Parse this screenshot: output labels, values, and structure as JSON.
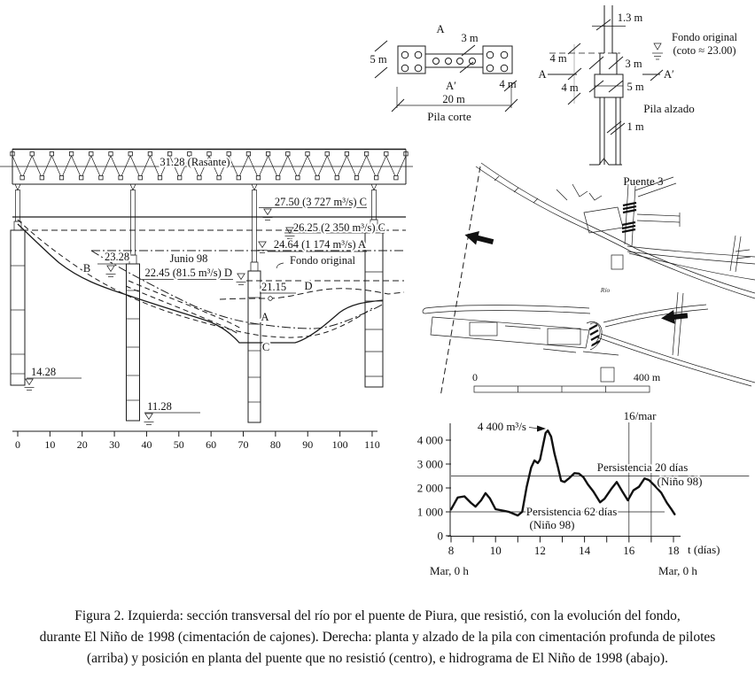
{
  "figure": {
    "caption_lines": [
      "Figura 2. Izquierda: sección transversal del río por el puente de Piura, que resistió, con la evolución del fondo,",
      "durante El Niño de 1998 (cimentación de cajones). Derecha: planta y alzado de la pila con cimentación profunda de pilotes",
      "(arriba) y posición en planta del puente que no resistió (centro), e hidrograma de El Niño de 1998 (abajo)."
    ]
  },
  "cross_section": {
    "rasante_label": "31.28 (Rasante)",
    "level_c_high": "27.50 (3 727 m³/s) C",
    "level_c_low": "26.25 (2 350 m³/s) C",
    "level_a": "24.64 (1 174 m³/s) A",
    "fondo_original": "Fondo original",
    "level_2328": "23.28",
    "junio_98": "Junio 98",
    "level_d": "22.45 (81.5 m³/s) D",
    "level_2115": "21.15",
    "curve_b": "B",
    "curve_d": "D",
    "curve_a": "A",
    "curve_c": "C",
    "elev_1428": "14.28",
    "elev_1128": "11.28",
    "axis_ticks": [
      "0",
      "10",
      "20",
      "30",
      "40",
      "50",
      "60",
      "70",
      "80",
      "90",
      "100",
      "110"
    ]
  },
  "pila_corte": {
    "title": "Pila corte",
    "section_a": "A",
    "section_a_prime": "A′",
    "dim_5m": "5 m",
    "dim_3m": "3 m",
    "dim_4m": "4 m",
    "dim_20m": "20 m"
  },
  "pila_alzado": {
    "title": "Pila alzado",
    "dim_13m": "1.3 m",
    "dim_4m_top": "4 m",
    "dim_3m": "3 m",
    "dim_4m_bottom": "4 m",
    "dim_5m": "5 m",
    "dim_1m": "1 m",
    "section_a": "A",
    "section_a_prime": "A′",
    "fondo_line1": "Fondo original",
    "fondo_line2": "(coto ≈ 23.00)"
  },
  "map": {
    "bridge_label": "Puente 3",
    "river_label": "Río",
    "scale_zero": "0",
    "scale_max": "400 m"
  },
  "chart_data": {
    "type": "line",
    "title": "",
    "xlabel": "t (días)",
    "ylabel": "",
    "x_range": [
      8,
      18.2
    ],
    "y_range": [
      0,
      4700
    ],
    "x_ticks": [
      8,
      10,
      12,
      14,
      16,
      18
    ],
    "x_minor_ticks": [
      9,
      11,
      13,
      15,
      17
    ],
    "x_tick_labels": [
      "8",
      "10",
      "12",
      "14",
      "16",
      "18"
    ],
    "y_ticks": [
      0,
      1000,
      2000,
      3000,
      4000
    ],
    "y_tick_labels": [
      "0",
      "1 000",
      "2 000",
      "3 000",
      "4 000"
    ],
    "x_start_label": "Mar, 0 h",
    "x_end_label": "Mar, 0 h",
    "series": [
      {
        "name": "caudal",
        "points": [
          [
            8,
            1100
          ],
          [
            8.3,
            1600
          ],
          [
            8.6,
            1650
          ],
          [
            8.9,
            1370
          ],
          [
            9.1,
            1220
          ],
          [
            9.35,
            1480
          ],
          [
            9.55,
            1780
          ],
          [
            9.75,
            1560
          ],
          [
            10,
            1110
          ],
          [
            10.4,
            1040
          ],
          [
            10.6,
            1000
          ],
          [
            11,
            850
          ],
          [
            11.2,
            1000
          ],
          [
            11.4,
            2040
          ],
          [
            11.6,
            2850
          ],
          [
            11.75,
            3150
          ],
          [
            11.9,
            3040
          ],
          [
            12,
            3180
          ],
          [
            12.1,
            3630
          ],
          [
            12.25,
            4300
          ],
          [
            12.35,
            4400
          ],
          [
            12.5,
            4150
          ],
          [
            12.65,
            3440
          ],
          [
            12.8,
            2890
          ],
          [
            12.95,
            2300
          ],
          [
            13.1,
            2250
          ],
          [
            13.3,
            2400
          ],
          [
            13.55,
            2620
          ],
          [
            13.75,
            2600
          ],
          [
            13.95,
            2450
          ],
          [
            14.15,
            2150
          ],
          [
            14.4,
            1850
          ],
          [
            14.7,
            1400
          ],
          [
            14.9,
            1550
          ],
          [
            15.2,
            1950
          ],
          [
            15.45,
            2250
          ],
          [
            15.7,
            1850
          ],
          [
            15.95,
            1480
          ],
          [
            16.2,
            1900
          ],
          [
            16.45,
            2050
          ],
          [
            16.7,
            2400
          ],
          [
            16.9,
            2330
          ],
          [
            17.15,
            2100
          ],
          [
            17.45,
            1800
          ],
          [
            17.7,
            1380
          ],
          [
            17.9,
            1120
          ],
          [
            18.05,
            900
          ]
        ]
      }
    ],
    "reference_lines": [
      {
        "value": 2500,
        "x_start": 8,
        "x_end": 21.4,
        "label": "Persistencia 20 días",
        "label2": "(Niño 98)"
      },
      {
        "value": 1000,
        "x_start": 8,
        "x_end": 17.6,
        "label": "Persistencia 62 días",
        "label2": "(Niño 98)"
      }
    ],
    "vertical_markers": {
      "days": [
        16,
        17
      ],
      "label": "16/mar"
    },
    "peak_annotation": {
      "day": 12.35,
      "value": 4400,
      "label": "4 400 m³/s"
    }
  }
}
